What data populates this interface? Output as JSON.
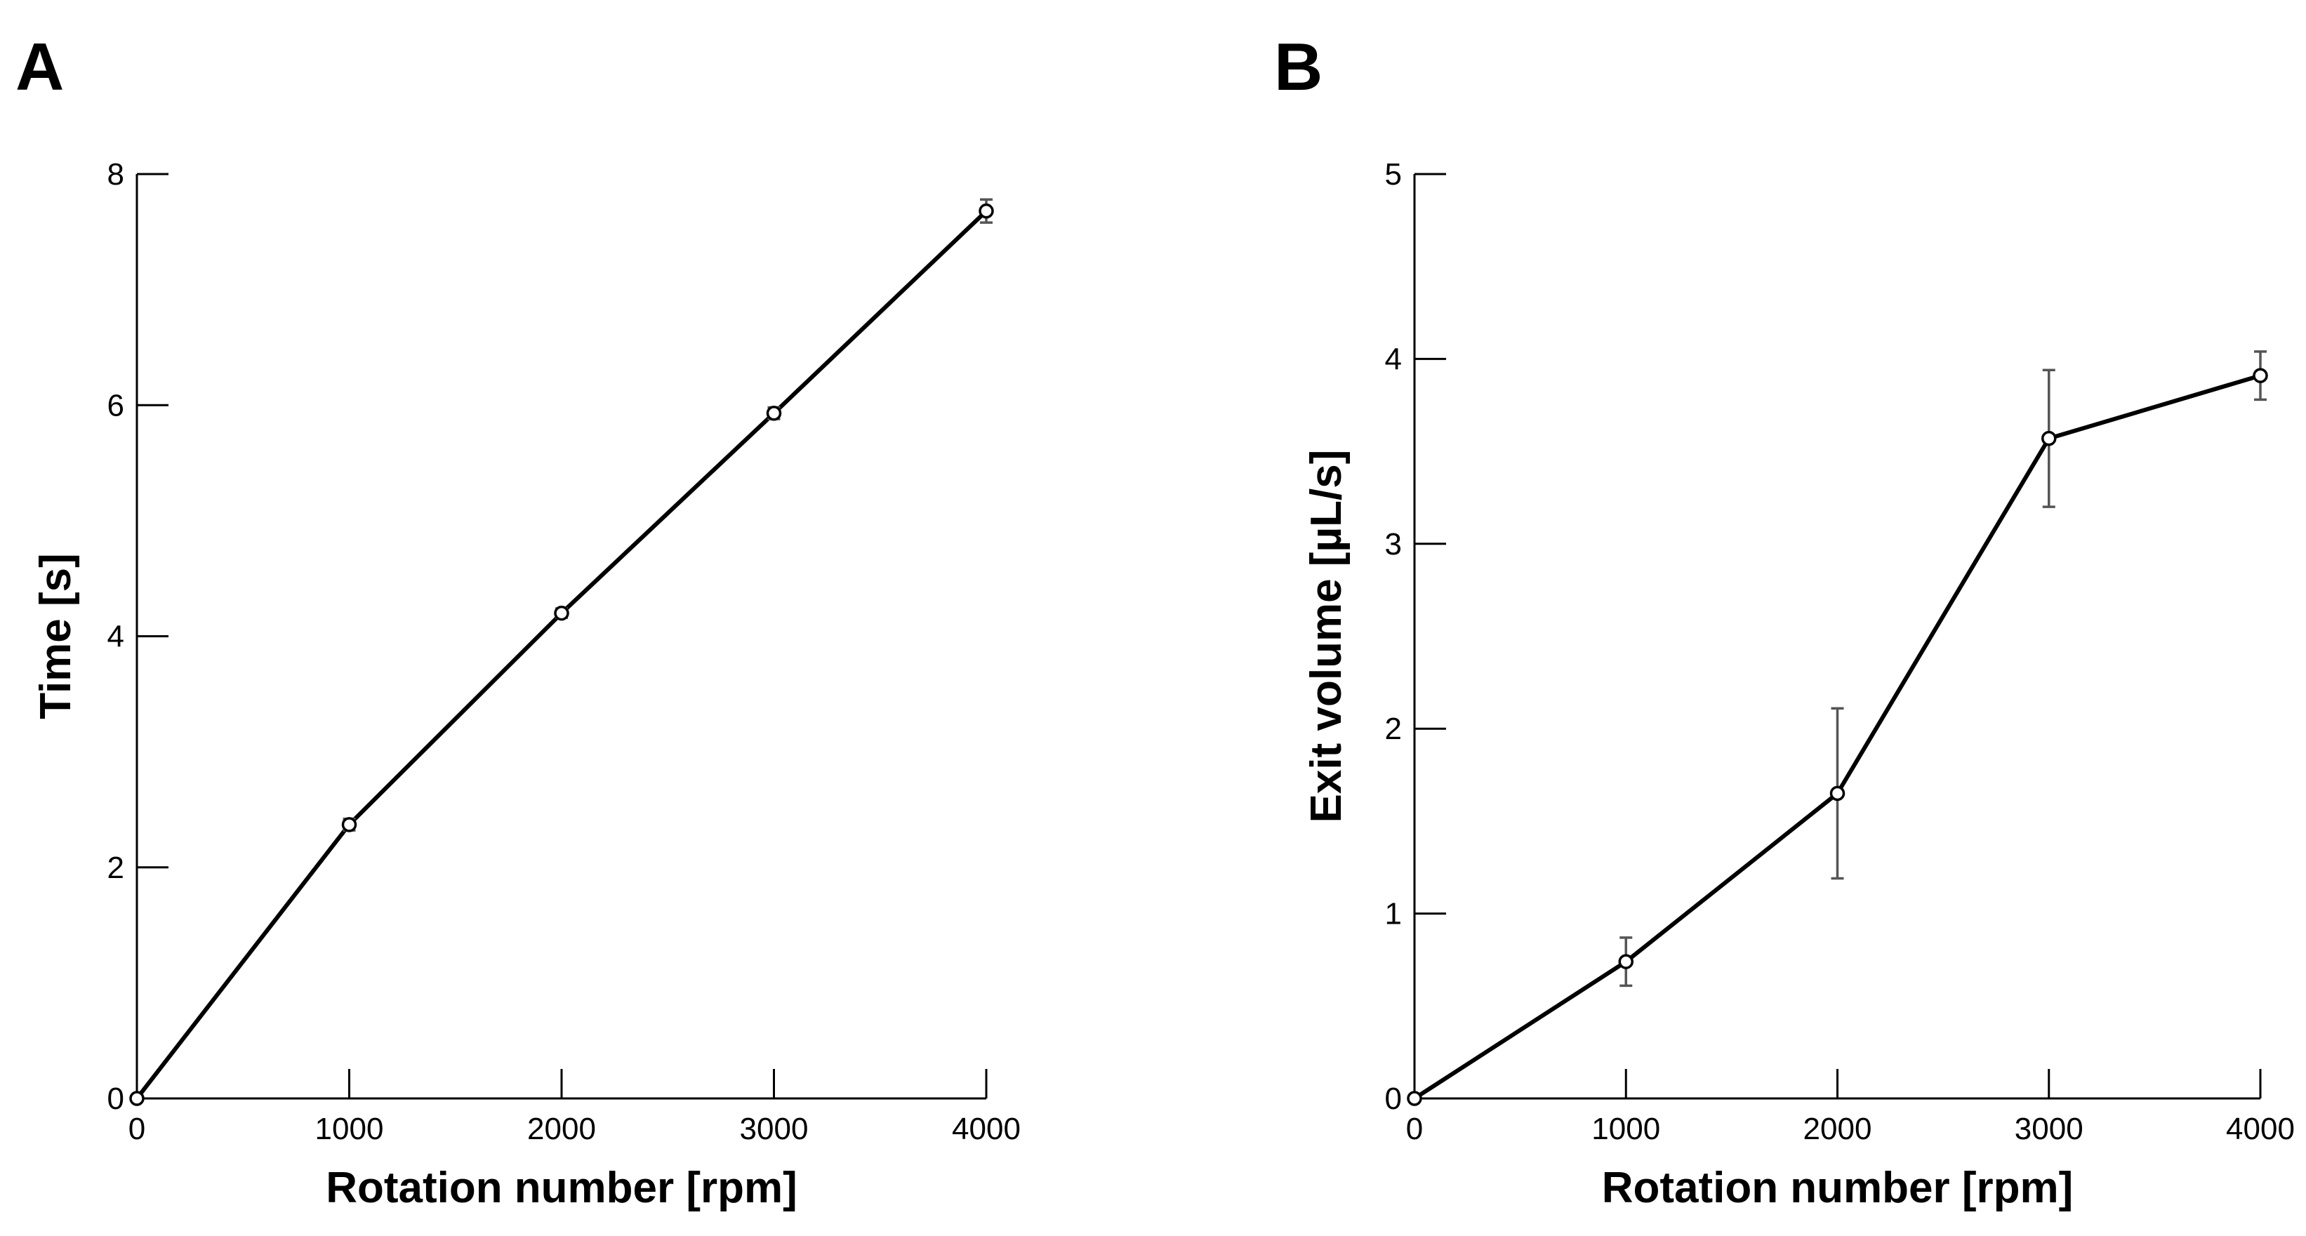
{
  "chart_data": [
    {
      "panel": "A",
      "type": "line",
      "title": "",
      "xlabel": "Rotation number [rpm]",
      "ylabel": "Time [s]",
      "xlim": [
        0,
        4000
      ],
      "ylim": [
        0,
        8
      ],
      "xticks": [
        0,
        1000,
        2000,
        3000,
        4000
      ],
      "yticks": [
        0,
        2,
        4,
        6,
        8
      ],
      "grid": false,
      "series": [
        {
          "name": "Time",
          "x": [
            0,
            1000,
            2000,
            3000,
            4000
          ],
          "y": [
            0,
            2.37,
            4.2,
            5.93,
            7.68
          ],
          "error": [
            0,
            0.05,
            0.04,
            0.05,
            0.1
          ]
        }
      ]
    },
    {
      "panel": "B",
      "type": "line",
      "title": "",
      "xlabel": "Rotation number [rpm]",
      "ylabel": "Exit volume [µL/s]",
      "xlim": [
        0,
        4000
      ],
      "ylim": [
        0,
        5
      ],
      "xticks": [
        0,
        1000,
        2000,
        3000,
        4000
      ],
      "yticks": [
        0,
        1,
        2,
        3,
        4,
        5
      ],
      "grid": false,
      "series": [
        {
          "name": "Exit volume",
          "x": [
            0,
            1000,
            2000,
            3000,
            4000
          ],
          "y": [
            0,
            0.74,
            1.65,
            3.57,
            3.91
          ],
          "error": [
            0,
            0.13,
            0.46,
            0.37,
            0.13
          ]
        }
      ]
    }
  ]
}
